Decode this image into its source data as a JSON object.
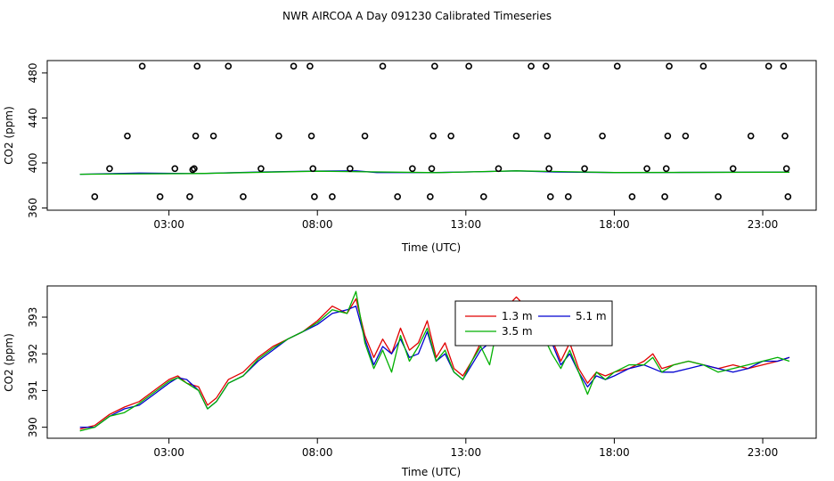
{
  "title": "NWR AIRCOA A  Day 091230  Calibrated Timeseries",
  "colors": {
    "red": "#e00000",
    "green": "#00b000",
    "blue": "#0000d0",
    "black": "#000000"
  },
  "chart_data": [
    {
      "type": "scatter",
      "xlabel": "Time (UTC)",
      "ylabel": "CO2 (ppm)",
      "xticks": [
        {
          "value": 3,
          "label": "03:00"
        },
        {
          "value": 8,
          "label": "08:00"
        },
        {
          "value": 13,
          "label": "13:00"
        },
        {
          "value": 18,
          "label": "18:00"
        },
        {
          "value": 23,
          "label": "23:00"
        }
      ],
      "yticks": [
        {
          "value": 360,
          "label": "360"
        },
        {
          "value": 400,
          "label": "400"
        },
        {
          "value": 440,
          "label": "440"
        },
        {
          "value": 480,
          "label": "480"
        }
      ],
      "xlim": [
        -1.1,
        24.8
      ],
      "ylim": [
        358,
        491
      ],
      "points": [
        {
          "x": 0.5,
          "y": 370
        },
        {
          "x": 1.0,
          "y": 395
        },
        {
          "x": 1.6,
          "y": 424
        },
        {
          "x": 2.1,
          "y": 486
        },
        {
          "x": 2.7,
          "y": 370
        },
        {
          "x": 3.2,
          "y": 395
        },
        {
          "x": 3.7,
          "y": 370
        },
        {
          "x": 3.8,
          "y": 394
        },
        {
          "x": 3.85,
          "y": 395
        },
        {
          "x": 3.9,
          "y": 424
        },
        {
          "x": 3.95,
          "y": 486
        },
        {
          "x": 4.5,
          "y": 424
        },
        {
          "x": 5.0,
          "y": 486
        },
        {
          "x": 5.5,
          "y": 370
        },
        {
          "x": 6.1,
          "y": 395
        },
        {
          "x": 6.7,
          "y": 424
        },
        {
          "x": 7.2,
          "y": 486
        },
        {
          "x": 7.75,
          "y": 486
        },
        {
          "x": 7.8,
          "y": 424
        },
        {
          "x": 7.85,
          "y": 395
        },
        {
          "x": 7.9,
          "y": 370
        },
        {
          "x": 8.5,
          "y": 370
        },
        {
          "x": 9.1,
          "y": 395
        },
        {
          "x": 9.6,
          "y": 424
        },
        {
          "x": 10.2,
          "y": 486
        },
        {
          "x": 10.7,
          "y": 370
        },
        {
          "x": 11.2,
          "y": 395
        },
        {
          "x": 11.8,
          "y": 370
        },
        {
          "x": 11.85,
          "y": 395
        },
        {
          "x": 11.9,
          "y": 424
        },
        {
          "x": 11.95,
          "y": 486
        },
        {
          "x": 12.5,
          "y": 424
        },
        {
          "x": 13.1,
          "y": 486
        },
        {
          "x": 13.6,
          "y": 370
        },
        {
          "x": 14.1,
          "y": 395
        },
        {
          "x": 14.7,
          "y": 424
        },
        {
          "x": 15.2,
          "y": 486
        },
        {
          "x": 15.7,
          "y": 486
        },
        {
          "x": 15.75,
          "y": 424
        },
        {
          "x": 15.8,
          "y": 395
        },
        {
          "x": 15.85,
          "y": 370
        },
        {
          "x": 16.45,
          "y": 370
        },
        {
          "x": 17.0,
          "y": 395
        },
        {
          "x": 17.6,
          "y": 424
        },
        {
          "x": 18.1,
          "y": 486
        },
        {
          "x": 18.6,
          "y": 370
        },
        {
          "x": 19.1,
          "y": 395
        },
        {
          "x": 19.7,
          "y": 370
        },
        {
          "x": 19.75,
          "y": 395
        },
        {
          "x": 19.8,
          "y": 424
        },
        {
          "x": 19.85,
          "y": 486
        },
        {
          "x": 20.4,
          "y": 424
        },
        {
          "x": 21.0,
          "y": 486
        },
        {
          "x": 21.5,
          "y": 370
        },
        {
          "x": 22.0,
          "y": 395
        },
        {
          "x": 22.6,
          "y": 424
        },
        {
          "x": 23.2,
          "y": 486
        },
        {
          "x": 23.7,
          "y": 486
        },
        {
          "x": 23.75,
          "y": 424
        },
        {
          "x": 23.8,
          "y": 395
        },
        {
          "x": 23.85,
          "y": 370
        }
      ],
      "series": [
        {
          "color": "blue",
          "x": [
            0,
            2,
            4,
            6,
            8,
            9.3,
            10,
            12,
            14,
            14.7,
            16,
            18,
            20,
            22,
            23.9
          ],
          "y": [
            390,
            391,
            390.5,
            392,
            392.8,
            393,
            391.5,
            391.5,
            392.5,
            393,
            392,
            391.5,
            391.6,
            391.7,
            391.9
          ]
        },
        {
          "color": "green",
          "x": [
            0,
            4,
            8,
            12,
            14.7,
            18,
            23.9
          ],
          "y": [
            390,
            390.6,
            392.7,
            391.4,
            393,
            391.5,
            391.8
          ]
        }
      ]
    },
    {
      "type": "line",
      "xlabel": "Time (UTC)",
      "ylabel": "CO2 (ppm)",
      "xticks": [
        {
          "value": 3,
          "label": "03:00"
        },
        {
          "value": 8,
          "label": "08:00"
        },
        {
          "value": 13,
          "label": "13:00"
        },
        {
          "value": 18,
          "label": "18:00"
        },
        {
          "value": 23,
          "label": "23:00"
        }
      ],
      "yticks": [
        {
          "value": 390,
          "label": "390"
        },
        {
          "value": 391,
          "label": "391"
        },
        {
          "value": 392,
          "label": "392"
        },
        {
          "value": 393,
          "label": "393"
        }
      ],
      "xlim": [
        -1.1,
        24.8
      ],
      "ylim": [
        389.7,
        393.85
      ],
      "legend": {
        "placement": "top-center"
      },
      "series": [
        {
          "name": "1.3 m",
          "color": "red",
          "x": [
            0,
            0.5,
            1,
            1.5,
            2,
            2.5,
            3,
            3.3,
            3.6,
            4.0,
            4.3,
            4.6,
            5,
            5.5,
            6,
            6.5,
            7,
            7.5,
            8,
            8.5,
            9,
            9.3,
            9.6,
            9.9,
            10.2,
            10.5,
            10.8,
            11.1,
            11.4,
            11.7,
            12,
            12.3,
            12.6,
            12.9,
            13.2,
            13.5,
            13.8,
            14.1,
            14.4,
            14.7,
            15.0,
            15.3,
            15.6,
            15.9,
            16.2,
            16.5,
            16.8,
            17.1,
            17.4,
            17.7,
            18,
            18.5,
            19,
            19.3,
            19.6,
            20,
            20.5,
            21,
            21.5,
            22,
            22.5,
            23,
            23.5,
            23.9
          ],
          "y": [
            389.95,
            390.05,
            390.35,
            390.55,
            390.7,
            391.0,
            391.3,
            391.4,
            391.2,
            391.1,
            390.6,
            390.8,
            391.3,
            391.5,
            391.9,
            392.2,
            392.4,
            392.6,
            392.9,
            393.3,
            393.1,
            393.5,
            392.5,
            391.9,
            392.4,
            392.0,
            392.7,
            392.1,
            392.3,
            392.9,
            391.9,
            392.3,
            391.6,
            391.4,
            391.8,
            392.3,
            392.4,
            393.0,
            393.3,
            393.55,
            393.3,
            393.1,
            392.7,
            392.4,
            391.8,
            392.3,
            391.6,
            391.2,
            391.5,
            391.4,
            391.5,
            391.6,
            391.8,
            392.0,
            391.6,
            391.7,
            391.8,
            391.7,
            391.6,
            391.7,
            391.6,
            391.7,
            391.8,
            391.9
          ]
        },
        {
          "name": "5.1 m",
          "color": "blue",
          "x": [
            0,
            0.5,
            1,
            1.5,
            2,
            2.5,
            3,
            3.3,
            3.6,
            4.0,
            4.3,
            4.6,
            5,
            5.5,
            6,
            6.5,
            7,
            7.5,
            8,
            8.5,
            9,
            9.3,
            9.6,
            9.9,
            10.2,
            10.5,
            10.8,
            11.1,
            11.4,
            11.7,
            12,
            12.3,
            12.6,
            12.9,
            13.2,
            13.5,
            13.8,
            14.1,
            14.4,
            14.7,
            15.0,
            15.3,
            15.6,
            15.9,
            16.2,
            16.5,
            16.8,
            17.1,
            17.4,
            17.7,
            18,
            18.5,
            19,
            19.3,
            19.6,
            20,
            20.5,
            21,
            21.5,
            22,
            22.5,
            23,
            23.5,
            23.9
          ],
          "y": [
            390.0,
            390.0,
            390.3,
            390.5,
            390.6,
            390.9,
            391.2,
            391.35,
            391.3,
            391.0,
            390.5,
            390.7,
            391.2,
            391.4,
            391.8,
            392.1,
            392.4,
            392.6,
            392.8,
            393.1,
            393.2,
            393.3,
            392.4,
            391.7,
            392.2,
            392.0,
            392.4,
            391.9,
            392.0,
            392.6,
            391.8,
            392.0,
            391.5,
            391.3,
            391.7,
            392.1,
            392.3,
            392.9,
            393.2,
            393.4,
            393.1,
            392.8,
            392.5,
            392.3,
            391.7,
            392.0,
            391.5,
            391.1,
            391.4,
            391.3,
            391.4,
            391.6,
            391.7,
            391.6,
            391.5,
            391.5,
            391.6,
            391.7,
            391.6,
            391.5,
            391.6,
            391.8,
            391.8,
            391.9
          ]
        },
        {
          "name": "3.5 m",
          "color": "green",
          "x": [
            0,
            0.5,
            1,
            1.5,
            2,
            2.5,
            3,
            3.3,
            3.6,
            4.0,
            4.3,
            4.6,
            5,
            5.5,
            6,
            6.5,
            7,
            7.5,
            8,
            8.5,
            9,
            9.3,
            9.6,
            9.9,
            10.2,
            10.5,
            10.8,
            11.1,
            11.4,
            11.7,
            12,
            12.3,
            12.6,
            12.9,
            13.2,
            13.5,
            13.8,
            14.1,
            14.4,
            14.7,
            15.0,
            15.3,
            15.6,
            15.9,
            16.2,
            16.5,
            16.8,
            17.1,
            17.4,
            17.7,
            18,
            18.5,
            19,
            19.3,
            19.6,
            20,
            20.5,
            21,
            21.5,
            22,
            22.5,
            23,
            23.5,
            23.9
          ],
          "y": [
            389.9,
            390.0,
            390.3,
            390.4,
            390.65,
            390.95,
            391.25,
            391.35,
            391.2,
            391.0,
            390.5,
            390.7,
            391.2,
            391.4,
            391.85,
            392.15,
            392.4,
            392.6,
            392.85,
            393.2,
            393.1,
            393.7,
            392.3,
            391.6,
            392.1,
            391.5,
            392.5,
            391.8,
            392.2,
            392.7,
            391.8,
            392.1,
            391.5,
            391.3,
            391.8,
            392.2,
            391.7,
            392.9,
            393.2,
            393.4,
            393.0,
            392.6,
            392.5,
            392.0,
            391.6,
            392.1,
            391.5,
            390.9,
            391.5,
            391.3,
            391.5,
            391.7,
            391.7,
            391.9,
            391.5,
            391.7,
            391.8,
            391.7,
            391.5,
            391.6,
            391.7,
            391.8,
            391.9,
            391.8
          ]
        }
      ]
    }
  ]
}
